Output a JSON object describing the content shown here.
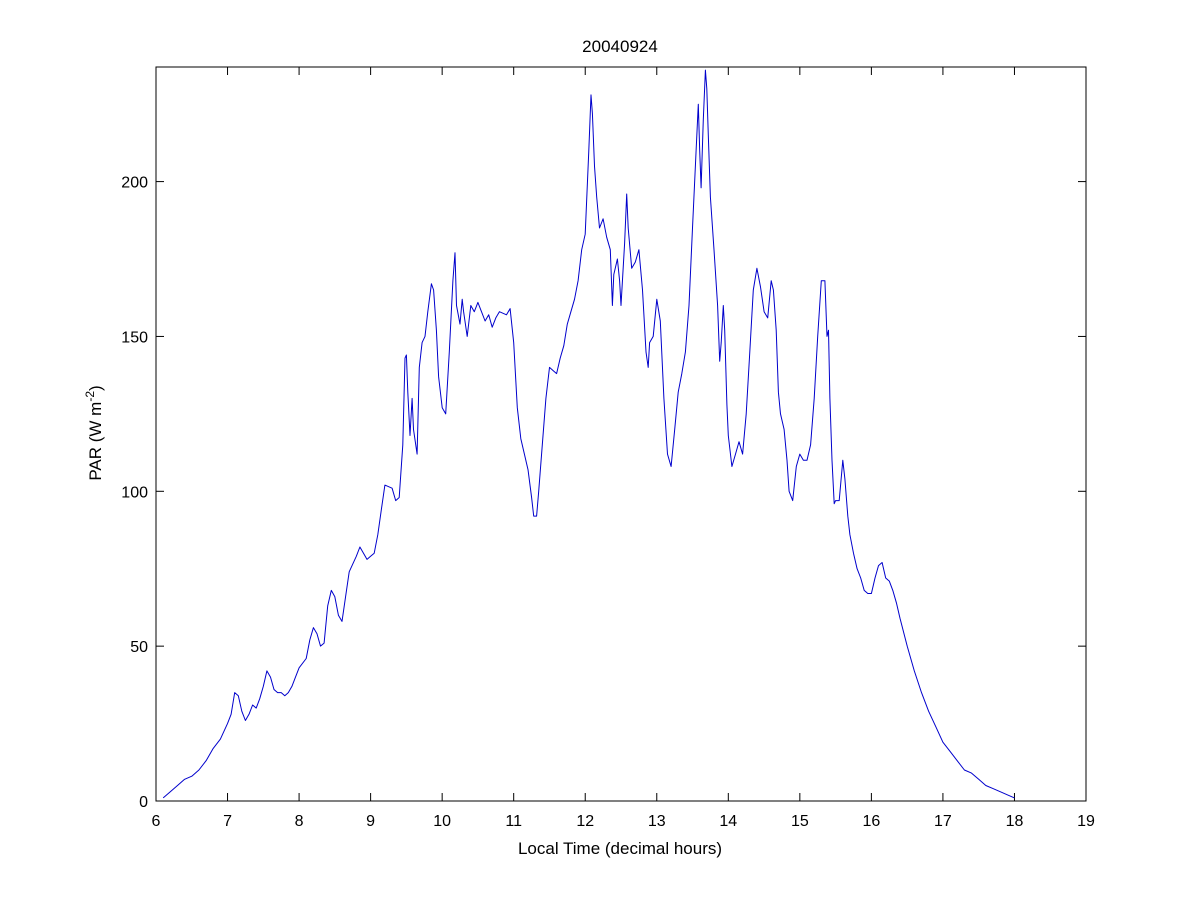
{
  "chart_data": {
    "type": "line",
    "title": "20040924",
    "xlabel": "Local Time (decimal hours)",
    "ylabel": "PAR (W m",
    "ylabel_sup": "-2",
    "ylabel_end": ")",
    "xlim": [
      6,
      19
    ],
    "ylim": [
      0,
      237
    ],
    "xticks": [
      6,
      7,
      8,
      9,
      10,
      11,
      12,
      13,
      14,
      15,
      16,
      17,
      18,
      19
    ],
    "yticks": [
      0,
      50,
      100,
      150,
      200
    ],
    "grid": false,
    "legend": "none",
    "series": [
      {
        "color": "#0000cc",
        "points": [
          [
            6.1,
            1
          ],
          [
            6.2,
            3
          ],
          [
            6.3,
            5
          ],
          [
            6.4,
            7
          ],
          [
            6.5,
            8
          ],
          [
            6.6,
            10
          ],
          [
            6.7,
            13
          ],
          [
            6.8,
            17
          ],
          [
            6.9,
            20
          ],
          [
            7.0,
            25
          ],
          [
            7.05,
            28
          ],
          [
            7.1,
            35
          ],
          [
            7.15,
            34
          ],
          [
            7.2,
            29
          ],
          [
            7.25,
            26
          ],
          [
            7.3,
            28
          ],
          [
            7.35,
            31
          ],
          [
            7.4,
            30
          ],
          [
            7.45,
            33
          ],
          [
            7.5,
            37
          ],
          [
            7.55,
            42
          ],
          [
            7.6,
            40
          ],
          [
            7.65,
            36
          ],
          [
            7.7,
            35
          ],
          [
            7.75,
            35
          ],
          [
            7.8,
            34
          ],
          [
            7.85,
            35
          ],
          [
            7.9,
            37
          ],
          [
            7.95,
            40
          ],
          [
            8.0,
            43
          ],
          [
            8.1,
            46
          ],
          [
            8.15,
            52
          ],
          [
            8.2,
            56
          ],
          [
            8.25,
            54
          ],
          [
            8.3,
            50
          ],
          [
            8.35,
            51
          ],
          [
            8.4,
            63
          ],
          [
            8.45,
            68
          ],
          [
            8.5,
            66
          ],
          [
            8.55,
            60
          ],
          [
            8.6,
            58
          ],
          [
            8.65,
            66
          ],
          [
            8.7,
            74
          ],
          [
            8.8,
            79
          ],
          [
            8.85,
            82
          ],
          [
            8.9,
            80
          ],
          [
            8.95,
            78
          ],
          [
            9.0,
            79
          ],
          [
            9.05,
            80
          ],
          [
            9.1,
            86
          ],
          [
            9.15,
            94
          ],
          [
            9.2,
            102
          ],
          [
            9.3,
            101
          ],
          [
            9.35,
            97
          ],
          [
            9.4,
            98
          ],
          [
            9.45,
            115
          ],
          [
            9.48,
            143
          ],
          [
            9.5,
            144
          ],
          [
            9.52,
            132
          ],
          [
            9.55,
            118
          ],
          [
            9.58,
            130
          ],
          [
            9.6,
            120
          ],
          [
            9.65,
            112
          ],
          [
            9.68,
            140
          ],
          [
            9.72,
            148
          ],
          [
            9.76,
            150
          ],
          [
            9.8,
            158
          ],
          [
            9.85,
            167
          ],
          [
            9.88,
            165
          ],
          [
            9.92,
            152
          ],
          [
            9.95,
            137
          ],
          [
            10.0,
            127
          ],
          [
            10.05,
            125
          ],
          [
            10.1,
            145
          ],
          [
            10.15,
            168
          ],
          [
            10.18,
            177
          ],
          [
            10.2,
            160
          ],
          [
            10.25,
            154
          ],
          [
            10.28,
            162
          ],
          [
            10.3,
            158
          ],
          [
            10.35,
            150
          ],
          [
            10.4,
            160
          ],
          [
            10.45,
            158
          ],
          [
            10.5,
            161
          ],
          [
            10.55,
            158
          ],
          [
            10.6,
            155
          ],
          [
            10.65,
            157
          ],
          [
            10.7,
            153
          ],
          [
            10.75,
            156
          ],
          [
            10.8,
            158
          ],
          [
            10.9,
            157
          ],
          [
            10.95,
            159
          ],
          [
            11.0,
            148
          ],
          [
            11.05,
            127
          ],
          [
            11.1,
            117
          ],
          [
            11.15,
            112
          ],
          [
            11.2,
            107
          ],
          [
            11.25,
            98
          ],
          [
            11.28,
            92
          ],
          [
            11.32,
            92
          ],
          [
            11.35,
            100
          ],
          [
            11.4,
            115
          ],
          [
            11.45,
            130
          ],
          [
            11.5,
            140
          ],
          [
            11.55,
            139
          ],
          [
            11.6,
            138
          ],
          [
            11.65,
            143
          ],
          [
            11.7,
            147
          ],
          [
            11.75,
            154
          ],
          [
            11.8,
            158
          ],
          [
            11.85,
            162
          ],
          [
            11.9,
            168
          ],
          [
            11.95,
            178
          ],
          [
            12.0,
            183
          ],
          [
            12.05,
            210
          ],
          [
            12.08,
            228
          ],
          [
            12.1,
            222
          ],
          [
            12.13,
            205
          ],
          [
            12.16,
            195
          ],
          [
            12.2,
            185
          ],
          [
            12.25,
            188
          ],
          [
            12.3,
            182
          ],
          [
            12.35,
            178
          ],
          [
            12.38,
            160
          ],
          [
            12.4,
            170
          ],
          [
            12.45,
            175
          ],
          [
            12.48,
            168
          ],
          [
            12.5,
            160
          ],
          [
            12.55,
            180
          ],
          [
            12.58,
            196
          ],
          [
            12.6,
            185
          ],
          [
            12.65,
            172
          ],
          [
            12.7,
            174
          ],
          [
            12.75,
            178
          ],
          [
            12.8,
            165
          ],
          [
            12.85,
            145
          ],
          [
            12.88,
            140
          ],
          [
            12.9,
            148
          ],
          [
            12.95,
            150
          ],
          [
            13.0,
            162
          ],
          [
            13.05,
            155
          ],
          [
            13.1,
            130
          ],
          [
            13.15,
            112
          ],
          [
            13.2,
            108
          ],
          [
            13.25,
            120
          ],
          [
            13.3,
            132
          ],
          [
            13.35,
            138
          ],
          [
            13.4,
            145
          ],
          [
            13.45,
            160
          ],
          [
            13.5,
            185
          ],
          [
            13.55,
            210
          ],
          [
            13.58,
            225
          ],
          [
            13.6,
            210
          ],
          [
            13.62,
            198
          ],
          [
            13.65,
            220
          ],
          [
            13.68,
            236
          ],
          [
            13.7,
            230
          ],
          [
            13.72,
            215
          ],
          [
            13.75,
            195
          ],
          [
            13.8,
            178
          ],
          [
            13.85,
            160
          ],
          [
            13.88,
            142
          ],
          [
            13.9,
            148
          ],
          [
            13.93,
            160
          ],
          [
            13.95,
            152
          ],
          [
            13.98,
            128
          ],
          [
            14.0,
            118
          ],
          [
            14.05,
            108
          ],
          [
            14.1,
            112
          ],
          [
            14.15,
            116
          ],
          [
            14.2,
            112
          ],
          [
            14.25,
            125
          ],
          [
            14.3,
            145
          ],
          [
            14.35,
            165
          ],
          [
            14.4,
            172
          ],
          [
            14.45,
            166
          ],
          [
            14.5,
            158
          ],
          [
            14.55,
            156
          ],
          [
            14.6,
            168
          ],
          [
            14.63,
            165
          ],
          [
            14.67,
            152
          ],
          [
            14.7,
            132
          ],
          [
            14.73,
            125
          ],
          [
            14.78,
            120
          ],
          [
            14.82,
            110
          ],
          [
            14.85,
            100
          ],
          [
            14.9,
            97
          ],
          [
            14.95,
            108
          ],
          [
            15.0,
            112
          ],
          [
            15.05,
            110
          ],
          [
            15.1,
            110
          ],
          [
            15.15,
            115
          ],
          [
            15.2,
            130
          ],
          [
            15.25,
            150
          ],
          [
            15.3,
            168
          ],
          [
            15.35,
            168
          ],
          [
            15.38,
            150
          ],
          [
            15.4,
            152
          ],
          [
            15.42,
            130
          ],
          [
            15.45,
            110
          ],
          [
            15.48,
            96
          ],
          [
            15.5,
            97
          ],
          [
            15.55,
            97
          ],
          [
            15.6,
            110
          ],
          [
            15.63,
            104
          ],
          [
            15.67,
            92
          ],
          [
            15.7,
            86
          ],
          [
            15.75,
            80
          ],
          [
            15.8,
            75
          ],
          [
            15.85,
            72
          ],
          [
            15.9,
            68
          ],
          [
            15.95,
            67
          ],
          [
            16.0,
            67
          ],
          [
            16.05,
            72
          ],
          [
            16.1,
            76
          ],
          [
            16.15,
            77
          ],
          [
            16.2,
            72
          ],
          [
            16.25,
            71
          ],
          [
            16.3,
            68
          ],
          [
            16.35,
            64
          ],
          [
            16.4,
            59
          ],
          [
            16.5,
            50
          ],
          [
            16.6,
            42
          ],
          [
            16.7,
            35
          ],
          [
            16.8,
            29
          ],
          [
            16.9,
            24
          ],
          [
            17.0,
            19
          ],
          [
            17.1,
            16
          ],
          [
            17.2,
            13
          ],
          [
            17.3,
            10
          ],
          [
            17.4,
            9
          ],
          [
            17.5,
            7
          ],
          [
            17.6,
            5
          ],
          [
            17.7,
            4
          ],
          [
            17.8,
            3
          ],
          [
            17.9,
            2
          ],
          [
            18.0,
            1
          ]
        ]
      }
    ]
  }
}
